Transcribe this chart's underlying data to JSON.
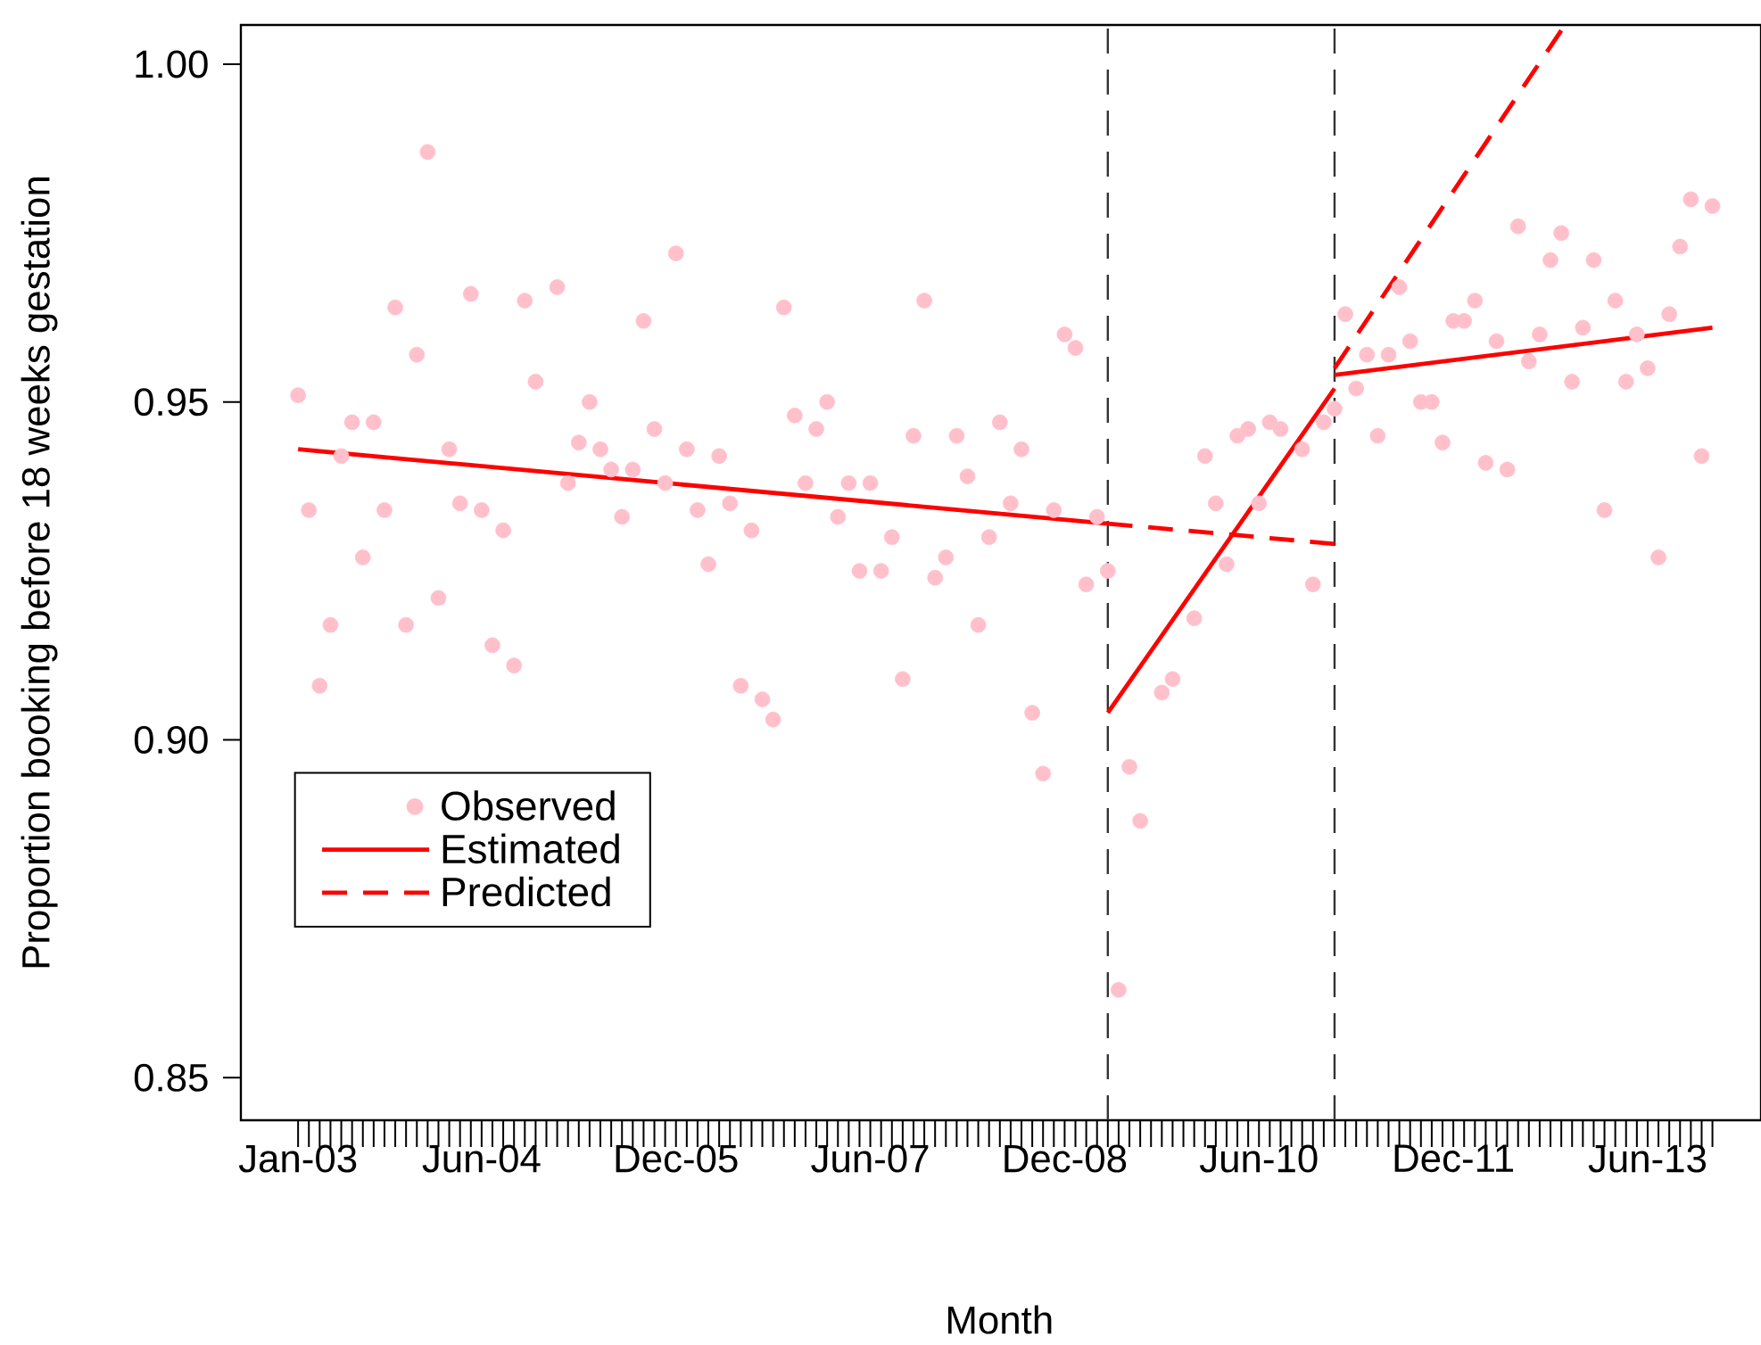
{
  "chart_data": {
    "type": "scatter",
    "xlabel": "Month",
    "ylabel": "Proportion booking before 18 weeks gestation",
    "xlim": [
      "2002-07-22",
      "2014-04-16"
    ],
    "ylim": [
      0.8437,
      1.0058
    ],
    "yticks": [
      {
        "value": 0.85,
        "label": "0.85"
      },
      {
        "value": 0.9,
        "label": "0.90"
      },
      {
        "value": 0.95,
        "label": "0.95"
      },
      {
        "value": 1.0,
        "label": "1.00"
      }
    ],
    "xticks": [
      {
        "value": "2003-01",
        "label": "Jan-03"
      },
      {
        "value": "2003-02",
        "label": null
      },
      {
        "value": "2003-03",
        "label": null
      },
      {
        "value": "2003-04",
        "label": null
      },
      {
        "value": "2003-05",
        "label": null
      },
      {
        "value": "2003-06",
        "label": null
      },
      {
        "value": "2003-07",
        "label": null
      },
      {
        "value": "2003-08",
        "label": null
      },
      {
        "value": "2003-09",
        "label": null
      },
      {
        "value": "2003-10",
        "label": null
      },
      {
        "value": "2003-11",
        "label": null
      },
      {
        "value": "2003-12",
        "label": null
      },
      {
        "value": "2004-01",
        "label": null
      },
      {
        "value": "2004-02",
        "label": null
      },
      {
        "value": "2004-03",
        "label": null
      },
      {
        "value": "2004-04",
        "label": null
      },
      {
        "value": "2004-05",
        "label": null
      },
      {
        "value": "2004-06",
        "label": "Jun-04"
      },
      {
        "value": "2004-07",
        "label": null
      },
      {
        "value": "2004-08",
        "label": null
      },
      {
        "value": "2004-09",
        "label": null
      },
      {
        "value": "2004-10",
        "label": null
      },
      {
        "value": "2004-11",
        "label": null
      },
      {
        "value": "2004-12",
        "label": null
      },
      {
        "value": "2005-01",
        "label": null
      },
      {
        "value": "2005-02",
        "label": null
      },
      {
        "value": "2005-03",
        "label": null
      },
      {
        "value": "2005-04",
        "label": null
      },
      {
        "value": "2005-05",
        "label": null
      },
      {
        "value": "2005-06",
        "label": null
      },
      {
        "value": "2005-07",
        "label": null
      },
      {
        "value": "2005-08",
        "label": null
      },
      {
        "value": "2005-09",
        "label": null
      },
      {
        "value": "2005-10",
        "label": null
      },
      {
        "value": "2005-11",
        "label": null
      },
      {
        "value": "2005-12",
        "label": "Dec-05"
      },
      {
        "value": "2006-01",
        "label": null
      },
      {
        "value": "2006-02",
        "label": null
      },
      {
        "value": "2006-03",
        "label": null
      },
      {
        "value": "2006-04",
        "label": null
      },
      {
        "value": "2006-05",
        "label": null
      },
      {
        "value": "2006-06",
        "label": null
      },
      {
        "value": "2006-07",
        "label": null
      },
      {
        "value": "2006-08",
        "label": null
      },
      {
        "value": "2006-09",
        "label": null
      },
      {
        "value": "2006-10",
        "label": null
      },
      {
        "value": "2006-11",
        "label": null
      },
      {
        "value": "2006-12",
        "label": null
      },
      {
        "value": "2007-01",
        "label": null
      },
      {
        "value": "2007-02",
        "label": null
      },
      {
        "value": "2007-03",
        "label": null
      },
      {
        "value": "2007-04",
        "label": null
      },
      {
        "value": "2007-05",
        "label": null
      },
      {
        "value": "2007-06",
        "label": "Jun-07"
      },
      {
        "value": "2007-07",
        "label": null
      },
      {
        "value": "2007-08",
        "label": null
      },
      {
        "value": "2007-09",
        "label": null
      },
      {
        "value": "2007-10",
        "label": null
      },
      {
        "value": "2007-11",
        "label": null
      },
      {
        "value": "2007-12",
        "label": null
      },
      {
        "value": "2008-01",
        "label": null
      },
      {
        "value": "2008-02",
        "label": null
      },
      {
        "value": "2008-03",
        "label": null
      },
      {
        "value": "2008-04",
        "label": null
      },
      {
        "value": "2008-05",
        "label": null
      },
      {
        "value": "2008-06",
        "label": null
      },
      {
        "value": "2008-07",
        "label": null
      },
      {
        "value": "2008-08",
        "label": null
      },
      {
        "value": "2008-09",
        "label": null
      },
      {
        "value": "2008-10",
        "label": null
      },
      {
        "value": "2008-11",
        "label": null
      },
      {
        "value": "2008-12",
        "label": "Dec-08"
      },
      {
        "value": "2009-01",
        "label": null
      },
      {
        "value": "2009-02",
        "label": null
      },
      {
        "value": "2009-03",
        "label": null
      },
      {
        "value": "2009-04",
        "label": null
      },
      {
        "value": "2009-05",
        "label": null
      },
      {
        "value": "2009-06",
        "label": null
      },
      {
        "value": "2009-07",
        "label": null
      },
      {
        "value": "2009-08",
        "label": null
      },
      {
        "value": "2009-09",
        "label": null
      },
      {
        "value": "2009-10",
        "label": null
      },
      {
        "value": "2009-11",
        "label": null
      },
      {
        "value": "2009-12",
        "label": null
      },
      {
        "value": "2010-01",
        "label": null
      },
      {
        "value": "2010-02",
        "label": null
      },
      {
        "value": "2010-03",
        "label": null
      },
      {
        "value": "2010-04",
        "label": null
      },
      {
        "value": "2010-05",
        "label": null
      },
      {
        "value": "2010-06",
        "label": "Jun-10"
      },
      {
        "value": "2010-07",
        "label": null
      },
      {
        "value": "2010-08",
        "label": null
      },
      {
        "value": "2010-09",
        "label": null
      },
      {
        "value": "2010-10",
        "label": null
      },
      {
        "value": "2010-11",
        "label": null
      },
      {
        "value": "2010-12",
        "label": null
      },
      {
        "value": "2011-01",
        "label": null
      },
      {
        "value": "2011-02",
        "label": null
      },
      {
        "value": "2011-03",
        "label": null
      },
      {
        "value": "2011-04",
        "label": null
      },
      {
        "value": "2011-05",
        "label": null
      },
      {
        "value": "2011-06",
        "label": null
      },
      {
        "value": "2011-07",
        "label": null
      },
      {
        "value": "2011-08",
        "label": null
      },
      {
        "value": "2011-09",
        "label": null
      },
      {
        "value": "2011-10",
        "label": null
      },
      {
        "value": "2011-11",
        "label": null
      },
      {
        "value": "2011-12",
        "label": "Dec-11"
      },
      {
        "value": "2012-01",
        "label": null
      },
      {
        "value": "2012-02",
        "label": null
      },
      {
        "value": "2012-03",
        "label": null
      },
      {
        "value": "2012-04",
        "label": null
      },
      {
        "value": "2012-05",
        "label": null
      },
      {
        "value": "2012-06",
        "label": null
      },
      {
        "value": "2012-07",
        "label": null
      },
      {
        "value": "2012-08",
        "label": null
      },
      {
        "value": "2012-09",
        "label": null
      },
      {
        "value": "2012-10",
        "label": null
      },
      {
        "value": "2012-11",
        "label": null
      },
      {
        "value": "2012-12",
        "label": null
      },
      {
        "value": "2013-01",
        "label": null
      },
      {
        "value": "2013-02",
        "label": null
      },
      {
        "value": "2013-03",
        "label": null
      },
      {
        "value": "2013-04",
        "label": null
      },
      {
        "value": "2013-05",
        "label": null
      },
      {
        "value": "2013-06",
        "label": "Jun-13"
      },
      {
        "value": "2013-07",
        "label": null
      },
      {
        "value": "2013-08",
        "label": null
      },
      {
        "value": "2013-09",
        "label": null
      },
      {
        "value": "2013-10",
        "label": null
      },
      {
        "value": "2013-11",
        "label": null
      },
      {
        "value": "2013-12",
        "label": null
      }
    ],
    "legend": "bottom left",
    "ref_lines": [
      {
        "axis": "x",
        "value": "2009-04",
        "color": "#333333",
        "line_style": "dashed"
      },
      {
        "axis": "x",
        "value": "2011-01",
        "color": "#333333",
        "line_style": "dashed"
      }
    ],
    "series": [
      {
        "name": "Observed",
        "marker": "circle",
        "color": "#ffc0cb",
        "x": [
          "2003-01",
          "2003-02",
          "2003-03",
          "2003-04",
          "2003-05",
          "2003-06",
          "2003-07",
          "2003-08",
          "2003-09",
          "2003-10",
          "2003-11",
          "2003-12",
          "2004-01",
          "2004-02",
          "2004-03",
          "2004-04",
          "2004-05",
          "2004-06",
          "2004-07",
          "2004-08",
          "2004-09",
          "2004-10",
          "2004-11",
          "2004-12",
          "2005-01",
          "2005-02",
          "2005-03",
          "2005-04",
          "2005-05",
          "2005-06",
          "2005-07",
          "2005-08",
          "2005-09",
          "2005-10",
          "2005-11",
          "2005-12",
          "2006-01",
          "2006-02",
          "2006-03",
          "2006-04",
          "2006-05",
          "2006-06",
          "2006-07",
          "2006-08",
          "2006-09",
          "2006-10",
          "2006-11",
          "2006-12",
          "2007-01",
          "2007-02",
          "2007-03",
          "2007-04",
          "2007-05",
          "2007-06",
          "2007-07",
          "2007-08",
          "2007-09",
          "2007-10",
          "2007-11",
          "2007-12",
          "2008-01",
          "2008-02",
          "2008-03",
          "2008-04",
          "2008-05",
          "2008-06",
          "2008-07",
          "2008-08",
          "2008-09",
          "2008-10",
          "2008-11",
          "2008-12",
          "2009-01",
          "2009-02",
          "2009-03",
          "2009-04",
          "2009-05",
          "2009-06",
          "2009-07",
          "2009-08",
          "2009-09",
          "2009-10",
          "2009-11",
          "2009-12",
          "2010-01",
          "2010-02",
          "2010-03",
          "2010-04",
          "2010-05",
          "2010-06",
          "2010-07",
          "2010-08",
          "2010-09",
          "2010-10",
          "2010-11",
          "2010-12",
          "2011-01",
          "2011-02",
          "2011-03",
          "2011-04",
          "2011-05",
          "2011-06",
          "2011-07",
          "2011-08",
          "2011-09",
          "2011-10",
          "2011-11",
          "2011-12",
          "2012-01",
          "2012-02",
          "2012-03",
          "2012-04",
          "2012-05",
          "2012-06",
          "2012-07",
          "2012-08",
          "2012-09",
          "2012-10",
          "2012-11",
          "2012-12",
          "2013-01",
          "2013-02",
          "2013-03",
          "2013-04",
          "2013-05",
          "2013-06",
          "2013-07",
          "2013-08",
          "2013-09",
          "2013-10",
          "2013-11",
          "2013-12"
        ],
        "values": [
          0.951,
          0.934,
          0.908,
          0.917,
          0.942,
          0.947,
          0.927,
          0.947,
          0.934,
          0.964,
          0.917,
          0.957,
          0.987,
          0.921,
          0.943,
          0.935,
          0.966,
          0.934,
          0.914,
          0.931,
          0.911,
          0.965,
          0.953,
          null,
          0.967,
          0.938,
          0.944,
          0.95,
          0.943,
          0.94,
          0.933,
          0.94,
          0.962,
          0.946,
          0.938,
          0.972,
          0.943,
          0.934,
          0.926,
          0.942,
          0.935,
          0.908,
          0.931,
          0.906,
          0.903,
          0.964,
          0.948,
          0.938,
          0.946,
          0.95,
          0.933,
          0.938,
          0.925,
          0.938,
          0.925,
          0.93,
          0.909,
          0.945,
          0.965,
          0.924,
          0.927,
          0.945,
          0.939,
          0.917,
          0.93,
          0.947,
          0.935,
          0.943,
          0.904,
          0.895,
          0.934,
          0.96,
          0.958,
          0.923,
          0.933,
          0.925,
          0.863,
          0.896,
          0.888,
          null,
          0.907,
          0.909,
          null,
          0.918,
          0.942,
          0.935,
          0.926,
          0.945,
          0.946,
          0.935,
          0.947,
          0.946,
          null,
          0.943,
          0.923,
          0.947,
          0.949,
          0.963,
          0.952,
          0.957,
          0.945,
          0.957,
          0.967,
          0.959,
          0.95,
          0.95,
          0.944,
          0.962,
          0.962,
          0.965,
          0.941,
          0.959,
          0.94,
          0.976,
          0.956,
          0.96,
          0.971,
          0.975,
          0.953,
          0.961,
          0.971,
          0.934,
          0.965,
          0.953,
          0.96,
          0.955,
          0.927,
          0.963,
          0.973,
          0.98,
          0.942,
          0.979
        ]
      },
      {
        "name": "Estimated",
        "type": "line",
        "marker": "none",
        "line_style": "solid",
        "color": "#ff0000",
        "x": [
          "2003-01",
          "2009-04"
        ],
        "values": [
          0.943,
          0.932
        ]
      },
      {
        "name": "Predicted",
        "type": "line",
        "marker": "none",
        "line_style": "dashed",
        "color": "#ff0000",
        "x": [
          "2009-04",
          "2011-01"
        ],
        "values": [
          0.932,
          0.929
        ]
      },
      {
        "type": "line",
        "marker": "none",
        "line_style": "solid",
        "color": "#ff0000",
        "x": [
          "2009-04",
          "2011-01"
        ],
        "values": [
          0.904,
          0.952
        ]
      },
      {
        "type": "line",
        "marker": "none",
        "line_style": "solid",
        "color": "#ff0000",
        "x": [
          "2011-01",
          "2013-12"
        ],
        "values": [
          0.954,
          0.961
        ]
      },
      {
        "type": "line",
        "marker": "none",
        "line_style": "dashed",
        "color": "#ff0000",
        "x": [
          "2011-01",
          "2012-10"
        ],
        "values": [
          0.955,
          1.005
        ]
      }
    ]
  }
}
